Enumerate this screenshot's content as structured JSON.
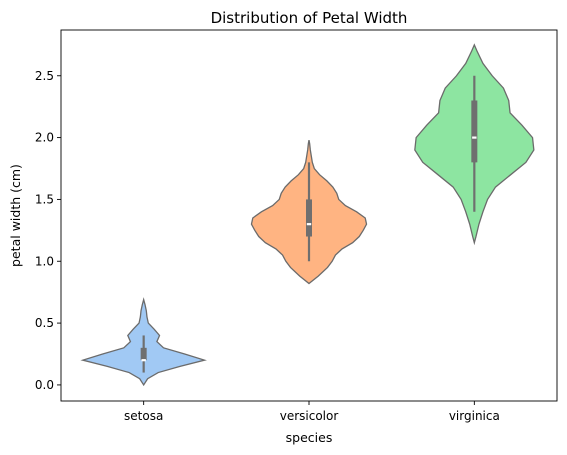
{
  "chart_data": {
    "type": "violin",
    "title": "Distribution of Petal Width",
    "xlabel": "species",
    "ylabel": "petal width (cm)",
    "categories": [
      "setosa",
      "versicolor",
      "virginica"
    ],
    "ylim": [
      -0.13,
      2.87
    ],
    "yticks": [
      0.0,
      0.5,
      1.0,
      1.5,
      2.0,
      2.5
    ],
    "ytick_labels": [
      "0.0",
      "0.5",
      "1.0",
      "1.5",
      "2.0",
      "2.5"
    ],
    "grid": false,
    "series": [
      {
        "category": "setosa",
        "color": "#a1c9f4",
        "min": 0.1,
        "q1": 0.2,
        "median": 0.2,
        "q3": 0.3,
        "max": 0.4,
        "density": [
          [
            0.0,
            0.0
          ],
          [
            0.05,
            0.06
          ],
          [
            0.1,
            0.22
          ],
          [
            0.15,
            0.55
          ],
          [
            0.2,
            0.92
          ],
          [
            0.25,
            0.62
          ],
          [
            0.3,
            0.3
          ],
          [
            0.35,
            0.2
          ],
          [
            0.4,
            0.24
          ],
          [
            0.45,
            0.16
          ],
          [
            0.5,
            0.07
          ],
          [
            0.55,
            0.05
          ],
          [
            0.6,
            0.04
          ],
          [
            0.65,
            0.02
          ],
          [
            0.69,
            0.0
          ]
        ]
      },
      {
        "category": "versicolor",
        "color": "#ffb482",
        "min": 1.0,
        "q1": 1.2,
        "median": 1.3,
        "q3": 1.5,
        "max": 1.8,
        "density": [
          [
            0.82,
            0.0
          ],
          [
            0.88,
            0.14
          ],
          [
            0.95,
            0.28
          ],
          [
            1.0,
            0.35
          ],
          [
            1.05,
            0.4
          ],
          [
            1.1,
            0.5
          ],
          [
            1.15,
            0.66
          ],
          [
            1.2,
            0.76
          ],
          [
            1.25,
            0.82
          ],
          [
            1.3,
            0.87
          ],
          [
            1.35,
            0.85
          ],
          [
            1.4,
            0.72
          ],
          [
            1.45,
            0.55
          ],
          [
            1.5,
            0.45
          ],
          [
            1.55,
            0.42
          ],
          [
            1.6,
            0.36
          ],
          [
            1.65,
            0.27
          ],
          [
            1.7,
            0.16
          ],
          [
            1.75,
            0.08
          ],
          [
            1.8,
            0.05
          ],
          [
            1.85,
            0.035
          ],
          [
            1.9,
            0.02
          ],
          [
            1.95,
            0.01
          ],
          [
            1.98,
            0.0
          ]
        ]
      },
      {
        "category": "virginica",
        "color": "#8de5a1",
        "min": 1.4,
        "q1": 1.8,
        "median": 2.0,
        "q3": 2.3,
        "max": 2.5,
        "density": [
          [
            1.15,
            0.0
          ],
          [
            1.2,
            0.025
          ],
          [
            1.3,
            0.07
          ],
          [
            1.4,
            0.13
          ],
          [
            1.5,
            0.2
          ],
          [
            1.6,
            0.32
          ],
          [
            1.7,
            0.55
          ],
          [
            1.8,
            0.78
          ],
          [
            1.9,
            0.9
          ],
          [
            2.0,
            0.88
          ],
          [
            2.1,
            0.72
          ],
          [
            2.2,
            0.54
          ],
          [
            2.3,
            0.52
          ],
          [
            2.4,
            0.44
          ],
          [
            2.5,
            0.27
          ],
          [
            2.6,
            0.13
          ],
          [
            2.7,
            0.04
          ],
          [
            2.75,
            0.0
          ]
        ]
      }
    ]
  }
}
